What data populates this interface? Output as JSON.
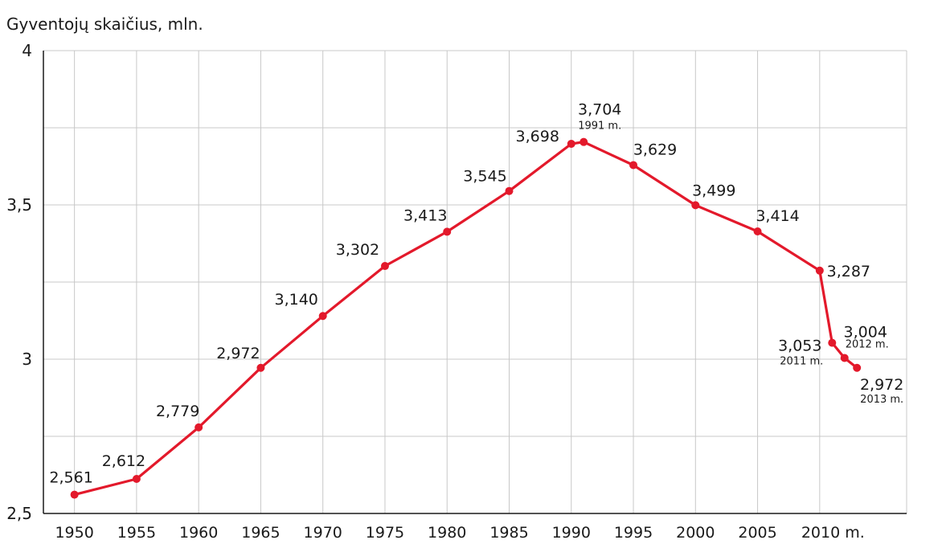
{
  "chart_data": {
    "type": "line",
    "title": "Gyventojų skaičius, mln.",
    "xlabel": "",
    "ylabel": "",
    "ylim": [
      2.5,
      4
    ],
    "xlim": [
      1947.5,
      2017
    ],
    "yticks": [
      {
        "value": 2.5,
        "label": "2,5"
      },
      {
        "value": 3,
        "label": "3"
      },
      {
        "value": 3.5,
        "label": "3,5"
      },
      {
        "value": 4,
        "label": "4"
      }
    ],
    "ygrid": [
      2.75,
      3,
      3.25,
      3.5,
      3.75,
      4
    ],
    "xticks": [
      {
        "value": 1950,
        "label": "1950"
      },
      {
        "value": 1955,
        "label": "1955"
      },
      {
        "value": 1960,
        "label": "1960"
      },
      {
        "value": 1965,
        "label": "1965"
      },
      {
        "value": 1970,
        "label": "1970"
      },
      {
        "value": 1975,
        "label": "1975"
      },
      {
        "value": 1980,
        "label": "1980"
      },
      {
        "value": 1985,
        "label": "1985"
      },
      {
        "value": 1990,
        "label": "1990"
      },
      {
        "value": 1995,
        "label": "1995"
      },
      {
        "value": 2000,
        "label": "2000"
      },
      {
        "value": 2005,
        "label": "2005"
      },
      {
        "value": 2010,
        "label": "2010 m."
      }
    ],
    "grid": true,
    "legend": "none",
    "color": "#e3192b",
    "points": [
      {
        "x": 1950,
        "y": 2.561,
        "label": "2,561",
        "note": ""
      },
      {
        "x": 1955,
        "y": 2.612,
        "label": "2,612",
        "note": ""
      },
      {
        "x": 1960,
        "y": 2.779,
        "label": "2,779",
        "note": ""
      },
      {
        "x": 1965,
        "y": 2.972,
        "label": "2,972",
        "note": ""
      },
      {
        "x": 1970,
        "y": 3.14,
        "label": "3,140",
        "note": ""
      },
      {
        "x": 1975,
        "y": 3.302,
        "label": "3,302",
        "note": ""
      },
      {
        "x": 1980,
        "y": 3.413,
        "label": "3,413",
        "note": ""
      },
      {
        "x": 1985,
        "y": 3.545,
        "label": "3,545",
        "note": ""
      },
      {
        "x": 1990,
        "y": 3.698,
        "label": "3,698",
        "note": ""
      },
      {
        "x": 1991,
        "y": 3.704,
        "label": "3,704",
        "note": "1991 m."
      },
      {
        "x": 1995,
        "y": 3.629,
        "label": "3,629",
        "note": ""
      },
      {
        "x": 2000,
        "y": 3.499,
        "label": "3,499",
        "note": ""
      },
      {
        "x": 2005,
        "y": 3.414,
        "label": "3,414",
        "note": ""
      },
      {
        "x": 2010,
        "y": 3.287,
        "label": "3,287",
        "note": ""
      },
      {
        "x": 2011,
        "y": 3.053,
        "label": "3,053",
        "note": "2011 m."
      },
      {
        "x": 2012,
        "y": 3.004,
        "label": "3,004",
        "note": "2012 m."
      },
      {
        "x": 2013,
        "y": 2.972,
        "label": "2,972",
        "note": "2013 m."
      }
    ]
  }
}
